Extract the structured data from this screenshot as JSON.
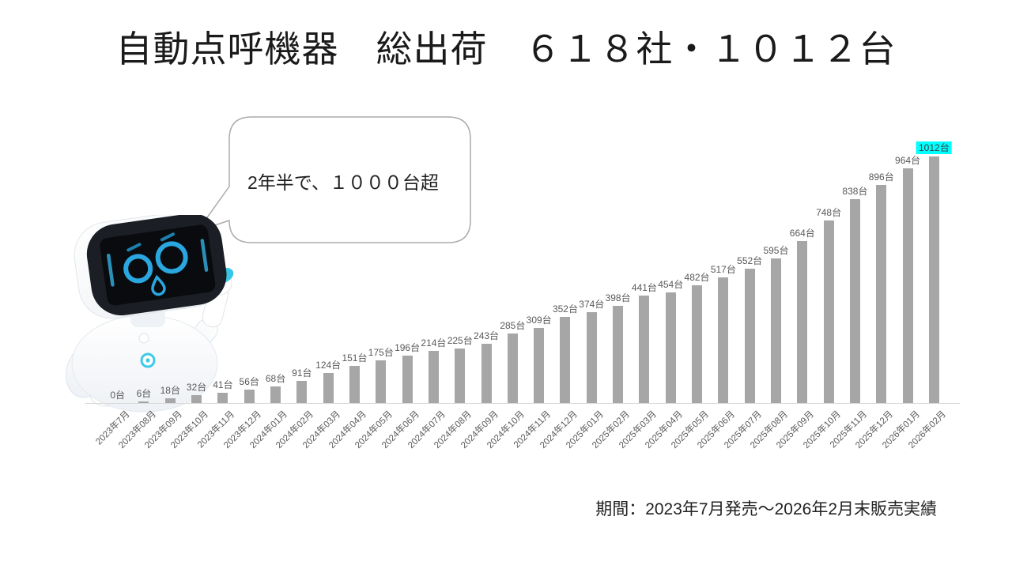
{
  "header": {
    "title": "自動点呼機器　総出荷　６１８社・１０１２台"
  },
  "callout": {
    "text": "2年半で、１０００台超"
  },
  "mascot": {
    "icon": "robot-mascot"
  },
  "caption": {
    "text": "期間：2023年7月発売～2026年2月末販売実績"
  },
  "chart_data": {
    "type": "bar",
    "title": "自動点呼機器　総出荷",
    "categories": [
      "2023年7月",
      "2023年08月",
      "2023年09月",
      "2023年10月",
      "2023年11月",
      "2023年12月",
      "2024年01月",
      "2024年02月",
      "2024年03月",
      "2024年04月",
      "2024年05月",
      "2024年06月",
      "2024年07月",
      "2024年08月",
      "2024年09月",
      "2024年10月",
      "2024年11月",
      "2024年12月",
      "2025年01月",
      "2025年02月",
      "2025年03月",
      "2025年04月",
      "2025年05月",
      "2025年06月",
      "2025年07月",
      "2025年08月",
      "2025年09月",
      "2025年10月",
      "2025年11月",
      "2025年12月",
      "2026年01月",
      "2026年02月"
    ],
    "values": [
      0,
      6,
      18,
      32,
      41,
      56,
      68,
      91,
      124,
      151,
      175,
      196,
      214,
      225,
      243,
      285,
      309,
      352,
      374,
      398,
      441,
      454,
      482,
      517,
      552,
      595,
      664,
      748,
      838,
      896,
      964,
      1012
    ],
    "unit": "台",
    "xlabel": "",
    "ylabel": "",
    "ylim": [
      0,
      1012
    ],
    "grid": false,
    "legend": "none",
    "data_labels": true,
    "bar_color": "#A6A6A6",
    "label_color": "#595959",
    "highlight_index": 31,
    "highlight_color": "#00FFFF",
    "axis_color": "#D9D9D9"
  }
}
